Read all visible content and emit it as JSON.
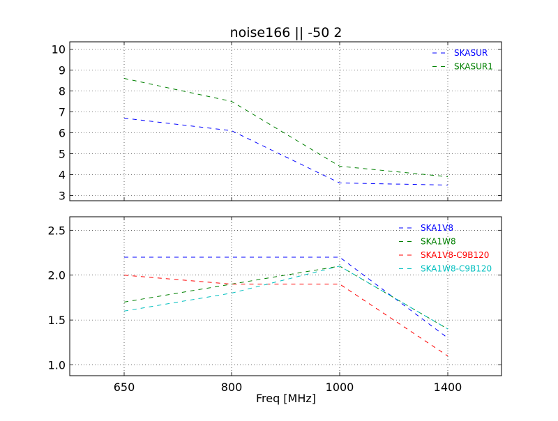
{
  "chart_data": [
    {
      "type": "line",
      "title": "noise166  || -50 2",
      "xlabel": "",
      "ylabel": "",
      "categories": [
        "650",
        "800",
        "1000",
        "1400"
      ],
      "ylim": [
        2.75,
        10.35
      ],
      "yticks": [
        "3",
        "4",
        "5",
        "6",
        "7",
        "8",
        "9",
        "10"
      ],
      "grid": true,
      "legend_position": "top-right",
      "line_style": "dashed",
      "series": [
        {
          "name": "SKASUR",
          "color": "#0000ff",
          "values": [
            6.7,
            6.1,
            3.6,
            3.5
          ]
        },
        {
          "name": "SKASUR1",
          "color": "#008000",
          "values": [
            8.6,
            7.5,
            4.4,
            3.9
          ]
        }
      ]
    },
    {
      "type": "line",
      "title": "",
      "xlabel": "Freq [MHz]",
      "ylabel": "",
      "categories": [
        "650",
        "800",
        "1000",
        "1400"
      ],
      "ylim": [
        0.88,
        2.65
      ],
      "yticks": [
        "1.0",
        "1.5",
        "2.0",
        "2.5"
      ],
      "grid": true,
      "legend_position": "top-right",
      "line_style": "dashed",
      "series": [
        {
          "name": "SKA1V8",
          "color": "#0000ff",
          "values": [
            2.2,
            2.2,
            2.2,
            1.3
          ]
        },
        {
          "name": "SKA1W8",
          "color": "#008000",
          "values": [
            1.7,
            1.9,
            2.1,
            1.4
          ]
        },
        {
          "name": "SKA1V8-C9B120",
          "color": "#ff0000",
          "values": [
            2.0,
            1.9,
            1.9,
            1.1
          ]
        },
        {
          "name": "SKA1W8-C9B120",
          "color": "#00bfbf",
          "values": [
            1.6,
            1.8,
            2.1,
            1.4
          ]
        }
      ]
    }
  ]
}
